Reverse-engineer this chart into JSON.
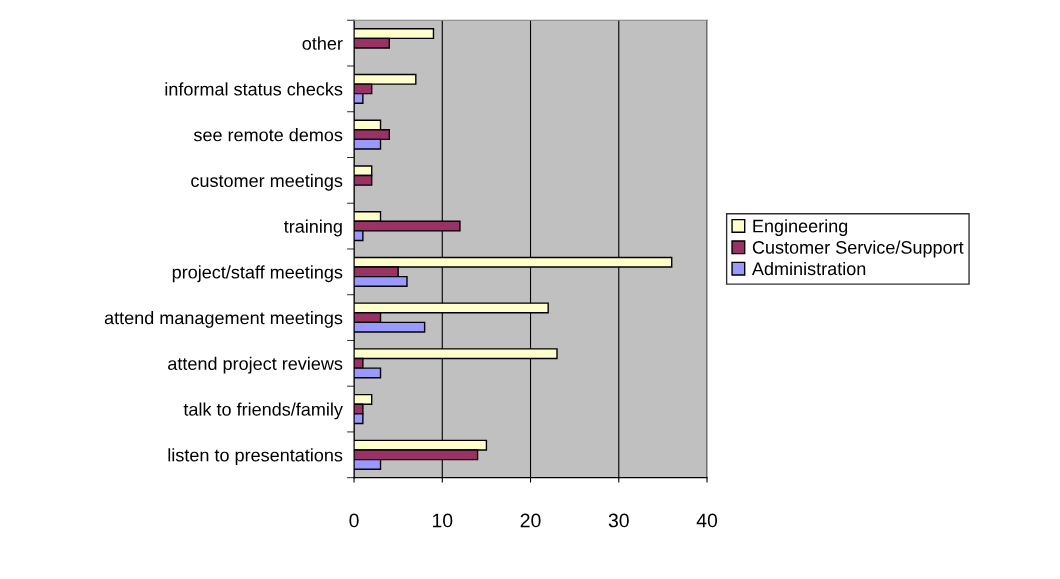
{
  "chart_data": {
    "type": "bar",
    "orientation": "horizontal",
    "categories": [
      "other",
      "informal status checks",
      "see remote demos",
      "customer meetings",
      "training",
      "project/staff meetings",
      "attend management meetings",
      "attend project reviews",
      "talk to friends/family",
      "listen to presentations"
    ],
    "series": [
      {
        "name": "Engineering",
        "color": "#ffffcc",
        "values": [
          9,
          7,
          3,
          2,
          3,
          36,
          22,
          23,
          2,
          15
        ]
      },
      {
        "name": "Customer Service/Support",
        "color": "#993366",
        "values": [
          4,
          2,
          4,
          2,
          12,
          5,
          3,
          1,
          1,
          14
        ]
      },
      {
        "name": "Administration",
        "color": "#9999ff",
        "values": [
          null,
          1,
          3,
          null,
          1,
          6,
          8,
          3,
          1,
          3
        ]
      }
    ],
    "xlim": [
      0,
      40
    ],
    "xticks": [
      0,
      10,
      20,
      30,
      40
    ],
    "grid": "x",
    "legend": "right"
  }
}
